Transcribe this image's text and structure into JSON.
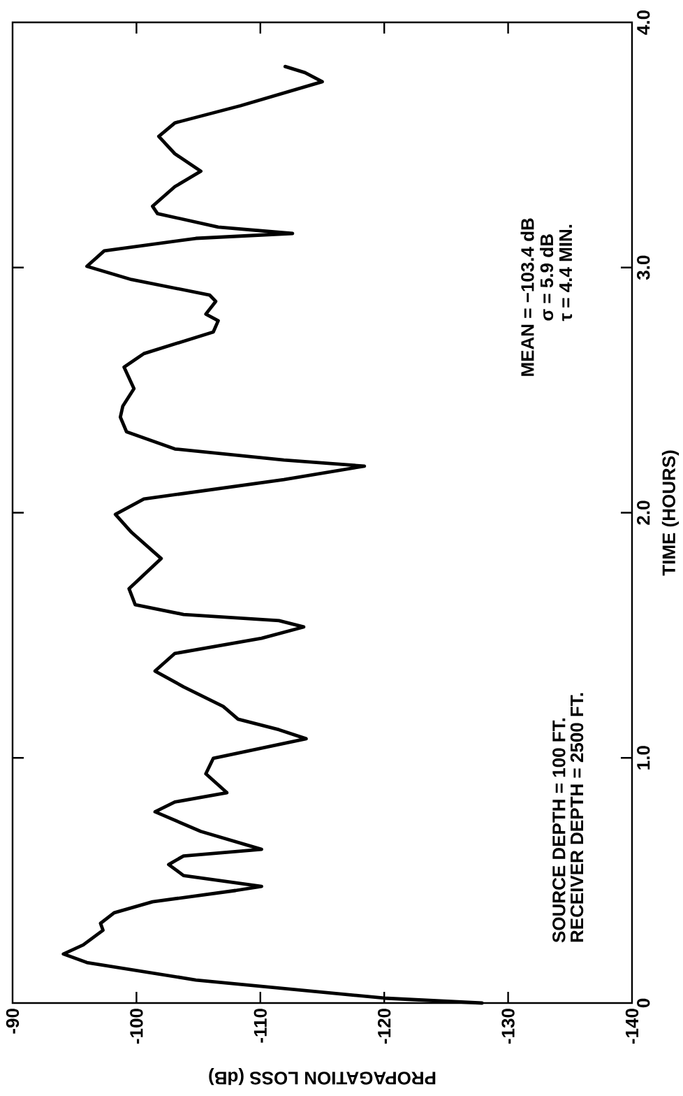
{
  "chart_data": {
    "type": "line",
    "xlabel": "PROPAGATION LOSS (dB)",
    "ylabel": "TIME (HOURS)",
    "xlim": [
      -90,
      -140
    ],
    "ylim": [
      0,
      4
    ],
    "xticks": [
      -90,
      -100,
      -110,
      -120,
      -130,
      -140
    ],
    "yticks": [
      0,
      {
        "value": 1,
        "label": "1.0"
      },
      {
        "value": 2,
        "label": "2.0"
      },
      {
        "value": 3,
        "label": "3.0"
      },
      {
        "value": 4,
        "label": "4.0"
      }
    ],
    "annotations": [
      "MEAN = −103.4 dB",
      "σ = 5.9 dB",
      "τ = 4.4 MIN.",
      "SOURCE DEPTH = 100 FT.",
      "RECEIVER DEPTH = 2500 FT."
    ],
    "series": [
      {
        "color": "#000000",
        "x": [
          -127.9,
          -120,
          -104.8,
          -96,
          -94.1,
          -95.7,
          -97.3,
          -97.1,
          -98.2,
          -101.3,
          -108,
          -110.1,
          -103.8,
          -102.6,
          -103.8,
          -110.1,
          -105.2,
          -101.5,
          -103.1,
          -107.3,
          -105.6,
          -106.2,
          -113.7,
          -111.5,
          -108.2,
          -107,
          -103.8,
          -101.5,
          -103.1,
          -110.1,
          -113.5,
          -111.5,
          -103.8,
          -99.9,
          -99.4,
          -102,
          -99.6,
          -98.3,
          -100.6,
          -111.9,
          -118.4,
          -111.9,
          -103.1,
          -99.2,
          -98.7,
          -98.9,
          -99.8,
          -99,
          -100.6,
          -106.2,
          -106.6,
          -105.6,
          -106.4,
          -105.9,
          -99.6,
          -96,
          -97.4,
          -104.8,
          -112.6,
          -106.6,
          -101.7,
          -101.3,
          -103.1,
          -105.2,
          -103.1,
          -101.8,
          -103.1,
          -108.4,
          -115,
          -113.6,
          -112
        ],
        "values": [
          0,
          0.02,
          0.094,
          0.165,
          0.2,
          0.237,
          0.297,
          0.325,
          0.368,
          0.413,
          0.459,
          0.476,
          0.52,
          0.565,
          0.6,
          0.627,
          0.7,
          0.78,
          0.82,
          0.858,
          0.935,
          0.998,
          1.078,
          1.115,
          1.158,
          1.21,
          1.29,
          1.354,
          1.426,
          1.488,
          1.534,
          1.56,
          1.585,
          1.625,
          1.69,
          1.813,
          1.92,
          1.993,
          2.056,
          2.135,
          2.19,
          2.215,
          2.26,
          2.33,
          2.39,
          2.435,
          2.506,
          2.594,
          2.649,
          2.737,
          2.783,
          2.81,
          2.862,
          2.888,
          2.951,
          3.005,
          3.068,
          3.119,
          3.139,
          3.165,
          3.22,
          3.25,
          3.33,
          3.393,
          3.464,
          3.535,
          3.59,
          3.66,
          3.758,
          3.795,
          3.82
        ]
      }
    ]
  }
}
